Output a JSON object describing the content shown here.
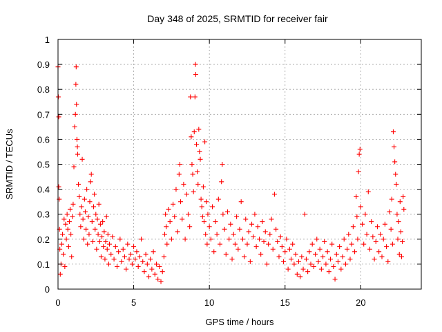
{
  "chart_data": {
    "type": "scatter",
    "title": "Day 348 of 2025, SRMTID for receiver fair",
    "xlabel": "GPS time / hours",
    "ylabel": "SRMTID / TECUs",
    "xlim": [
      0,
      24
    ],
    "ylim": [
      0,
      1
    ],
    "xticks": [
      0,
      5,
      10,
      15,
      20
    ],
    "xtick_labels": [
      "0",
      "5",
      "10",
      "15",
      "20"
    ],
    "yticks": [
      0,
      0.1,
      0.2,
      0.3,
      0.4,
      0.5,
      0.6,
      0.7,
      0.8,
      0.9,
      1
    ],
    "ytick_labels": [
      "0",
      "0.1",
      "0.2",
      "0.3",
      "0.4",
      "0.5",
      "0.6",
      "0.7",
      "0.8",
      "0.9",
      "1"
    ],
    "grid": true,
    "marker": "+",
    "color": "#ff0000",
    "series": [
      {
        "name": "SRMTID",
        "points": [
          [
            0.0,
            0.89
          ],
          [
            0.02,
            0.77
          ],
          [
            0.05,
            0.69
          ],
          [
            0.05,
            0.41
          ],
          [
            0.08,
            0.36
          ],
          [
            0.1,
            0.24
          ],
          [
            0.12,
            0.16
          ],
          [
            0.15,
            0.06
          ],
          [
            0.2,
            0.1
          ],
          [
            0.25,
            0.18
          ],
          [
            0.3,
            0.22
          ],
          [
            0.35,
            0.14
          ],
          [
            0.4,
            0.28
          ],
          [
            0.45,
            0.09
          ],
          [
            0.5,
            0.26
          ],
          [
            0.55,
            0.2
          ],
          [
            0.6,
            0.3
          ],
          [
            0.65,
            0.24
          ],
          [
            0.7,
            0.17
          ],
          [
            0.75,
            0.27
          ],
          [
            0.8,
            0.32
          ],
          [
            0.85,
            0.22
          ],
          [
            0.9,
            0.13
          ],
          [
            0.95,
            0.29
          ],
          [
            1.0,
            0.34
          ],
          [
            1.05,
            0.49
          ],
          [
            1.1,
            0.65
          ],
          [
            1.15,
            0.7
          ],
          [
            1.18,
            0.82
          ],
          [
            1.2,
            0.89
          ],
          [
            1.22,
            0.74
          ],
          [
            1.25,
            0.6
          ],
          [
            1.28,
            0.57
          ],
          [
            1.3,
            0.54
          ],
          [
            1.35,
            0.42
          ],
          [
            1.4,
            0.37
          ],
          [
            1.45,
            0.3
          ],
          [
            1.5,
            0.25
          ],
          [
            1.55,
            0.33
          ],
          [
            1.6,
            0.52
          ],
          [
            1.65,
            0.28
          ],
          [
            1.7,
            0.2
          ],
          [
            1.75,
            0.36
          ],
          [
            1.8,
            0.31
          ],
          [
            1.85,
            0.24
          ],
          [
            1.9,
            0.4
          ],
          [
            1.95,
            0.18
          ],
          [
            2.0,
            0.29
          ],
          [
            2.05,
            0.22
          ],
          [
            2.1,
            0.35
          ],
          [
            2.15,
            0.43
          ],
          [
            2.2,
            0.46
          ],
          [
            2.25,
            0.27
          ],
          [
            2.3,
            0.19
          ],
          [
            2.35,
            0.33
          ],
          [
            2.4,
            0.38
          ],
          [
            2.45,
            0.24
          ],
          [
            2.5,
            0.3
          ],
          [
            2.55,
            0.16
          ],
          [
            2.6,
            0.28
          ],
          [
            2.65,
            0.22
          ],
          [
            2.7,
            0.34
          ],
          [
            2.75,
            0.19
          ],
          [
            2.8,
            0.26
          ],
          [
            2.85,
            0.13
          ],
          [
            2.9,
            0.21
          ],
          [
            2.95,
            0.27
          ],
          [
            3.0,
            0.17
          ],
          [
            3.05,
            0.23
          ],
          [
            3.1,
            0.12
          ],
          [
            3.15,
            0.19
          ],
          [
            3.2,
            0.29
          ],
          [
            3.25,
            0.16
          ],
          [
            3.3,
            0.22
          ],
          [
            3.35,
            0.1
          ],
          [
            3.4,
            0.18
          ],
          [
            3.5,
            0.14
          ],
          [
            3.6,
            0.21
          ],
          [
            3.7,
            0.12
          ],
          [
            3.8,
            0.17
          ],
          [
            3.9,
            0.09
          ],
          [
            4.0,
            0.15
          ],
          [
            4.1,
            0.2
          ],
          [
            4.2,
            0.11
          ],
          [
            4.3,
            0.16
          ],
          [
            4.4,
            0.13
          ],
          [
            4.5,
            0.08
          ],
          [
            4.6,
            0.18
          ],
          [
            4.7,
            0.12
          ],
          [
            4.8,
            0.14
          ],
          [
            4.9,
            0.1
          ],
          [
            5.0,
            0.17
          ],
          [
            5.1,
            0.12
          ],
          [
            5.2,
            0.15
          ],
          [
            5.3,
            0.09
          ],
          [
            5.4,
            0.13
          ],
          [
            5.5,
            0.2
          ],
          [
            5.6,
            0.11
          ],
          [
            5.7,
            0.07
          ],
          [
            5.8,
            0.14
          ],
          [
            5.9,
            0.1
          ],
          [
            6.0,
            0.05
          ],
          [
            6.1,
            0.12
          ],
          [
            6.2,
            0.08
          ],
          [
            6.3,
            0.15
          ],
          [
            6.4,
            0.06
          ],
          [
            6.5,
            0.1
          ],
          [
            6.6,
            0.04
          ],
          [
            6.7,
            0.09
          ],
          [
            6.8,
            0.03
          ],
          [
            6.9,
            0.07
          ],
          [
            7.0,
            0.13
          ],
          [
            7.05,
            0.22
          ],
          [
            7.1,
            0.3
          ],
          [
            7.15,
            0.25
          ],
          [
            7.2,
            0.18
          ],
          [
            7.3,
            0.32
          ],
          [
            7.4,
            0.27
          ],
          [
            7.5,
            0.2
          ],
          [
            7.6,
            0.34
          ],
          [
            7.7,
            0.29
          ],
          [
            7.8,
            0.4
          ],
          [
            7.9,
            0.23
          ],
          [
            8.0,
            0.46
          ],
          [
            8.05,
            0.5
          ],
          [
            8.1,
            0.35
          ],
          [
            8.2,
            0.28
          ],
          [
            8.3,
            0.42
          ],
          [
            8.4,
            0.2
          ],
          [
            8.5,
            0.38
          ],
          [
            8.6,
            0.3
          ],
          [
            8.7,
            0.25
          ],
          [
            8.75,
            0.77
          ],
          [
            8.8,
            0.61
          ],
          [
            8.85,
            0.5
          ],
          [
            8.9,
            0.46
          ],
          [
            8.95,
            0.39
          ],
          [
            9.0,
            0.63
          ],
          [
            9.05,
            0.77
          ],
          [
            9.08,
            0.9
          ],
          [
            9.1,
            0.86
          ],
          [
            9.15,
            0.58
          ],
          [
            9.2,
            0.47
          ],
          [
            9.25,
            0.42
          ],
          [
            9.3,
            0.64
          ],
          [
            9.35,
            0.55
          ],
          [
            9.4,
            0.52
          ],
          [
            9.45,
            0.36
          ],
          [
            9.5,
            0.33
          ],
          [
            9.55,
            0.29
          ],
          [
            9.6,
            0.41
          ],
          [
            9.65,
            0.27
          ],
          [
            9.7,
            0.59
          ],
          [
            9.75,
            0.22
          ],
          [
            9.8,
            0.35
          ],
          [
            9.85,
            0.18
          ],
          [
            9.9,
            0.3
          ],
          [
            10.0,
            0.25
          ],
          [
            10.1,
            0.2
          ],
          [
            10.2,
            0.33
          ],
          [
            10.3,
            0.15
          ],
          [
            10.4,
            0.27
          ],
          [
            10.5,
            0.22
          ],
          [
            10.6,
            0.36
          ],
          [
            10.7,
            0.18
          ],
          [
            10.8,
            0.43
          ],
          [
            10.85,
            0.5
          ],
          [
            10.9,
            0.3
          ],
          [
            11.0,
            0.24
          ],
          [
            11.1,
            0.14
          ],
          [
            11.2,
            0.31
          ],
          [
            11.3,
            0.2
          ],
          [
            11.4,
            0.26
          ],
          [
            11.5,
            0.12
          ],
          [
            11.6,
            0.22
          ],
          [
            11.7,
            0.18
          ],
          [
            11.8,
            0.29
          ],
          [
            11.9,
            0.16
          ],
          [
            12.0,
            0.24
          ],
          [
            12.1,
            0.35
          ],
          [
            12.2,
            0.2
          ],
          [
            12.3,
            0.13
          ],
          [
            12.4,
            0.28
          ],
          [
            12.5,
            0.18
          ],
          [
            12.6,
            0.23
          ],
          [
            12.7,
            0.11
          ],
          [
            12.8,
            0.26
          ],
          [
            12.9,
            0.21
          ],
          [
            13.0,
            0.3
          ],
          [
            13.1,
            0.17
          ],
          [
            13.2,
            0.25
          ],
          [
            13.3,
            0.2
          ],
          [
            13.4,
            0.14
          ],
          [
            13.5,
            0.27
          ],
          [
            13.6,
            0.19
          ],
          [
            13.7,
            0.23
          ],
          [
            13.8,
            0.1
          ],
          [
            13.9,
            0.18
          ],
          [
            14.0,
            0.22
          ],
          [
            14.1,
            0.28
          ],
          [
            14.2,
            0.16
          ],
          [
            14.3,
            0.38
          ],
          [
            14.4,
            0.24
          ],
          [
            14.5,
            0.19
          ],
          [
            14.6,
            0.13
          ],
          [
            14.7,
            0.21
          ],
          [
            14.8,
            0.17
          ],
          [
            14.9,
            0.11
          ],
          [
            15.0,
            0.15
          ],
          [
            15.1,
            0.2
          ],
          [
            15.2,
            0.08
          ],
          [
            15.3,
            0.16
          ],
          [
            15.4,
            0.12
          ],
          [
            15.5,
            0.18
          ],
          [
            15.6,
            0.1
          ],
          [
            15.7,
            0.14
          ],
          [
            15.8,
            0.06
          ],
          [
            15.9,
            0.11
          ],
          [
            16.0,
            0.05
          ],
          [
            16.1,
            0.13
          ],
          [
            16.2,
            0.08
          ],
          [
            16.3,
            0.3
          ],
          [
            16.4,
            0.12
          ],
          [
            16.5,
            0.07
          ],
          [
            16.6,
            0.15
          ],
          [
            16.7,
            0.1
          ],
          [
            16.8,
            0.18
          ],
          [
            16.9,
            0.09
          ],
          [
            17.0,
            0.14
          ],
          [
            17.1,
            0.2
          ],
          [
            17.2,
            0.11
          ],
          [
            17.3,
            0.16
          ],
          [
            17.4,
            0.08
          ],
          [
            17.5,
            0.13
          ],
          [
            17.6,
            0.19
          ],
          [
            17.7,
            0.1
          ],
          [
            17.8,
            0.15
          ],
          [
            17.9,
            0.07
          ],
          [
            18.0,
            0.12
          ],
          [
            18.1,
            0.18
          ],
          [
            18.2,
            0.09
          ],
          [
            18.3,
            0.04
          ],
          [
            18.4,
            0.14
          ],
          [
            18.5,
            0.11
          ],
          [
            18.6,
            0.17
          ],
          [
            18.7,
            0.08
          ],
          [
            18.8,
            0.13
          ],
          [
            18.9,
            0.2
          ],
          [
            19.0,
            0.1
          ],
          [
            19.1,
            0.16
          ],
          [
            19.2,
            0.22
          ],
          [
            19.3,
            0.12
          ],
          [
            19.4,
            0.18
          ],
          [
            19.5,
            0.25
          ],
          [
            19.6,
            0.15
          ],
          [
            19.7,
            0.37
          ],
          [
            19.75,
            0.29
          ],
          [
            19.8,
            0.2
          ],
          [
            19.85,
            0.47
          ],
          [
            19.9,
            0.54
          ],
          [
            19.95,
            0.56
          ],
          [
            20.0,
            0.33
          ],
          [
            20.1,
            0.26
          ],
          [
            20.2,
            0.18
          ],
          [
            20.3,
            0.3
          ],
          [
            20.4,
            0.22
          ],
          [
            20.5,
            0.39
          ],
          [
            20.6,
            0.16
          ],
          [
            20.7,
            0.27
          ],
          [
            20.8,
            0.21
          ],
          [
            20.9,
            0.12
          ],
          [
            21.0,
            0.19
          ],
          [
            21.1,
            0.25
          ],
          [
            21.2,
            0.15
          ],
          [
            21.3,
            0.22
          ],
          [
            21.4,
            0.13
          ],
          [
            21.5,
            0.2
          ],
          [
            21.6,
            0.26
          ],
          [
            21.7,
            0.17
          ],
          [
            21.8,
            0.11
          ],
          [
            21.9,
            0.31
          ],
          [
            22.0,
            0.24
          ],
          [
            22.05,
            0.36
          ],
          [
            22.1,
            0.18
          ],
          [
            22.15,
            0.63
          ],
          [
            22.2,
            0.57
          ],
          [
            22.25,
            0.51
          ],
          [
            22.3,
            0.46
          ],
          [
            22.35,
            0.42
          ],
          [
            22.4,
            0.3
          ],
          [
            22.45,
            0.2
          ],
          [
            22.5,
            0.27
          ],
          [
            22.55,
            0.14
          ],
          [
            22.6,
            0.35
          ],
          [
            22.65,
            0.23
          ],
          [
            22.7,
            0.13
          ],
          [
            22.75,
            0.19
          ],
          [
            22.8,
            0.37
          ],
          [
            22.85,
            0.32
          ]
        ]
      }
    ]
  }
}
